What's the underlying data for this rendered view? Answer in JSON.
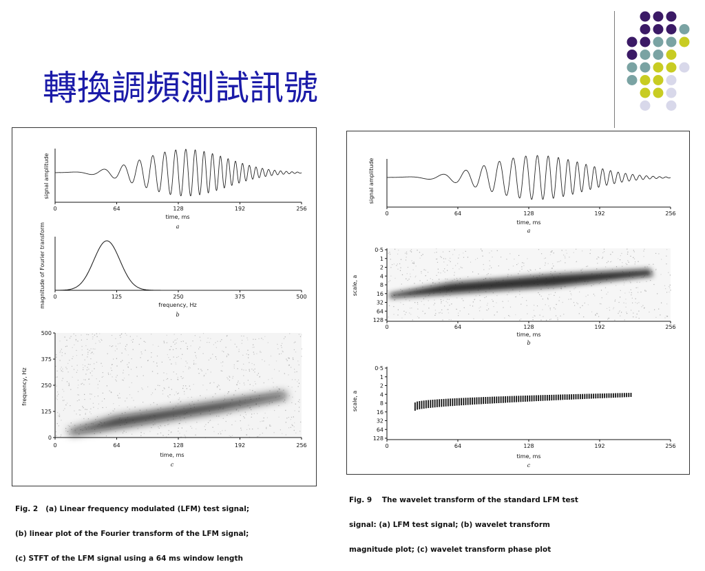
{
  "slide": {
    "title": "轉換調頻測試訊號",
    "colors": {
      "title": "#1a1aa8",
      "purple": "#3b1a66",
      "teal": "#7aa3a3",
      "yellow": "#c8cc22",
      "lavender": "#d8d8ea"
    }
  },
  "fig2": {
    "caption_lines": [
      "Fig. 2   (a) Linear frequency modulated (LFM) test signal;",
      "(b) linear plot of the Fourier transform of the LFM signal;",
      "(c) STFT of the LFM signal using a 64 ms window length"
    ],
    "panel_a": {
      "ylabel": "signal amplitude",
      "xlabel": "time, ms",
      "tag": "a",
      "xticks": [
        "0",
        "64",
        "128",
        "192",
        "256"
      ]
    },
    "panel_b": {
      "ylabel": "magnitude of Fourier transform",
      "xlabel": "frequency, Hz",
      "tag": "b",
      "xticks": [
        "0",
        "125",
        "250",
        "375",
        "500"
      ]
    },
    "panel_c": {
      "ylabel": "frequency, Hz",
      "xlabel": "time, ms",
      "tag": "c",
      "xticks": [
        "0",
        "64",
        "128",
        "192",
        "256"
      ],
      "yticks": [
        "500",
        "375",
        "250",
        "125",
        "0"
      ]
    }
  },
  "fig9": {
    "caption_lines": [
      "Fig. 9    The wavelet transform of the standard LFM test",
      "signal: (a) LFM test signal; (b) wavelet transform",
      "magnitude plot; (c) wavelet transform phase plot"
    ],
    "panel_a": {
      "ylabel": "signal amplitude",
      "xlabel": "time, ms",
      "tag": "a",
      "xticks": [
        "0",
        "64",
        "128",
        "192",
        "256"
      ]
    },
    "panel_b": {
      "ylabel": "scale, a",
      "xlabel": "time, ms",
      "tag": "b",
      "xticks": [
        "0",
        "64",
        "128",
        "192",
        "256"
      ],
      "yticks": [
        "0·5",
        "1",
        "2",
        "4",
        "8",
        "16",
        "32",
        "64",
        "128"
      ]
    },
    "panel_c": {
      "ylabel": "scale, a",
      "xlabel": "time, ms",
      "tag": "c",
      "xticks": [
        "0",
        "64",
        "128",
        "192",
        "256"
      ],
      "yticks": [
        "0·5",
        "1",
        "2",
        "4",
        "8",
        "16",
        "32",
        "64",
        "128"
      ]
    }
  }
}
